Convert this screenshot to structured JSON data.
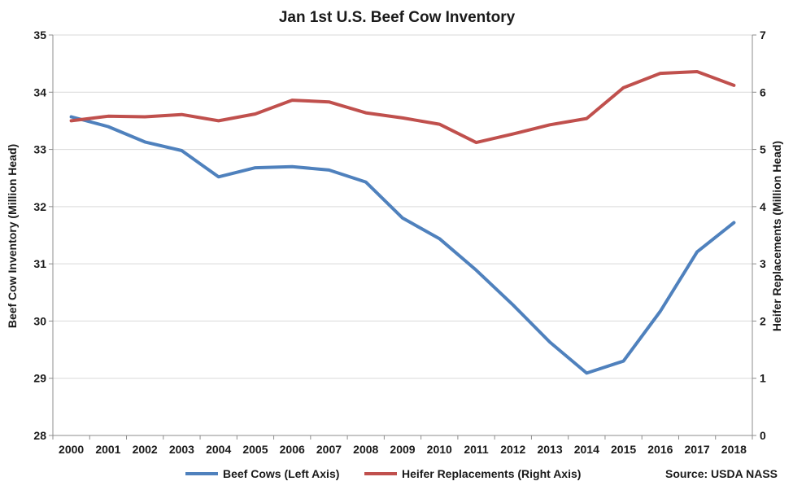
{
  "chart_data": {
    "type": "line",
    "title": "Jan 1st U.S. Beef Cow Inventory",
    "categories": [
      "2000",
      "2001",
      "2002",
      "2003",
      "2004",
      "2005",
      "2006",
      "2007",
      "2008",
      "2009",
      "2010",
      "2011",
      "2012",
      "2013",
      "2014",
      "2015",
      "2016",
      "2017",
      "2018"
    ],
    "y_left": {
      "label": "Beef Cow Inventory (Million Head)",
      "min": 28,
      "max": 35,
      "ticks": [
        "28",
        "29",
        "30",
        "31",
        "32",
        "33",
        "34",
        "35"
      ]
    },
    "y_right": {
      "label": "Heifer Replacements (Million Head)",
      "min": 0,
      "max": 7,
      "ticks": [
        "0",
        "1",
        "2",
        "3",
        "4",
        "5",
        "6",
        "7"
      ]
    },
    "series": [
      {
        "name": "Beef Cows (Left Axis)",
        "axis": "left",
        "color": "#4f81bd",
        "values": [
          33.57,
          33.4,
          33.13,
          32.98,
          32.52,
          32.68,
          32.7,
          32.64,
          32.43,
          31.8,
          31.44,
          30.89,
          30.28,
          29.63,
          29.09,
          29.3,
          30.17,
          31.21,
          31.72
        ]
      },
      {
        "name": "Heifer Replacements (Right Axis)",
        "axis": "right",
        "color": "#c0504d",
        "values": [
          5.5,
          5.58,
          5.57,
          5.61,
          5.5,
          5.62,
          5.86,
          5.83,
          5.64,
          5.55,
          5.44,
          5.12,
          5.27,
          5.43,
          5.54,
          6.08,
          6.33,
          6.36,
          6.12
        ]
      }
    ],
    "source": "Source: USDA NASS",
    "grid": true,
    "legend_position": "bottom"
  },
  "colors": {
    "beef_cows": "#4f81bd",
    "heifers": "#c0504d",
    "grid": "#d9d9d9"
  }
}
